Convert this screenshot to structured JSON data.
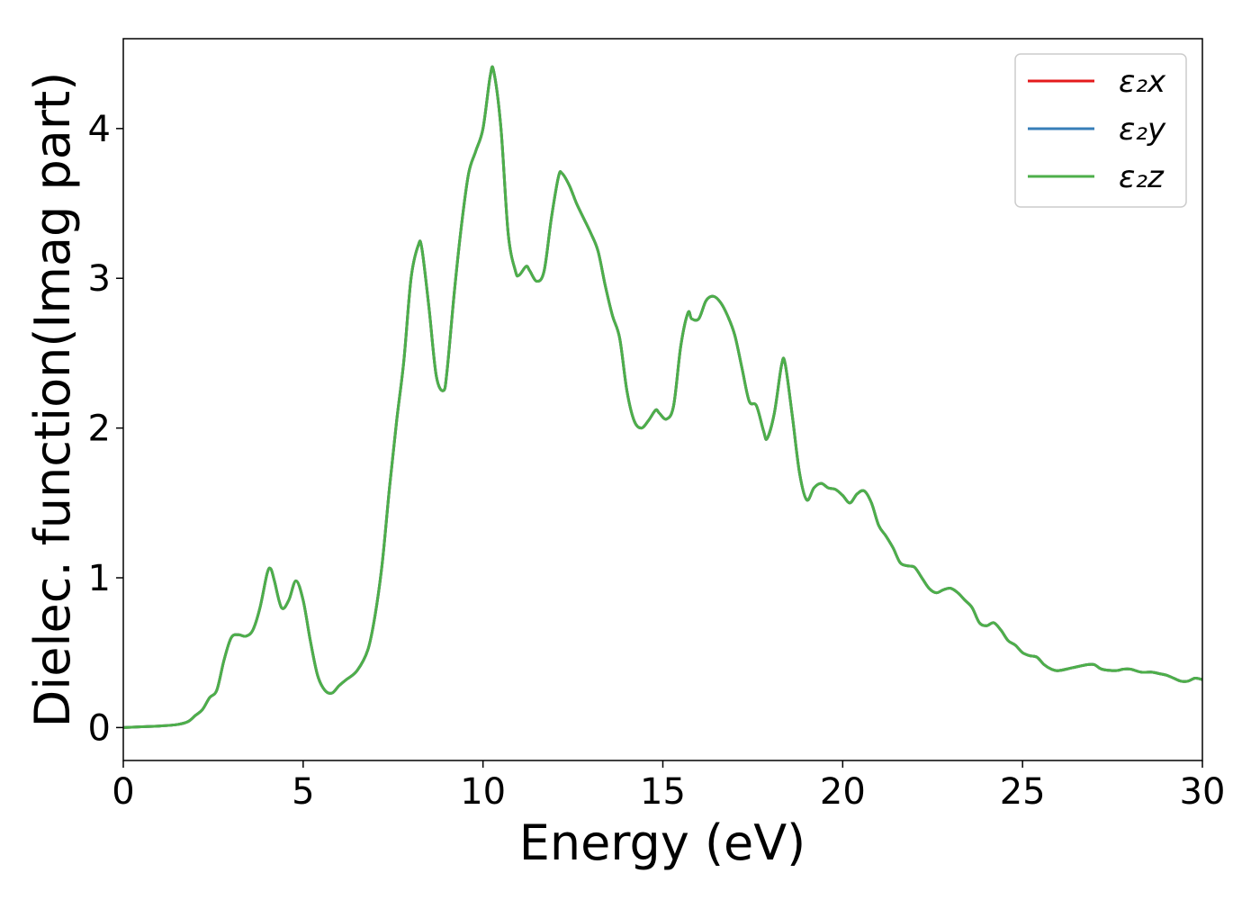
{
  "chart_data": {
    "type": "line",
    "title": "",
    "xlabel": "Energy (eV)",
    "ylabel": "Dielec. function(Imag part)",
    "xlim": [
      0,
      30
    ],
    "ylim": [
      -0.22,
      4.6
    ],
    "xticks": [
      0,
      5,
      10,
      15,
      20,
      25,
      30
    ],
    "xtick_labels": [
      "0",
      "5",
      "10",
      "15",
      "20",
      "25",
      "30"
    ],
    "yticks": [
      0,
      1,
      2,
      3,
      4
    ],
    "ytick_labels": [
      "0",
      "1",
      "2",
      "3",
      "4"
    ],
    "grid": false,
    "legend_position": "top-right",
    "x": [
      0,
      0.5,
      1.0,
      1.5,
      1.8,
      2.0,
      2.2,
      2.4,
      2.6,
      2.8,
      3.0,
      3.2,
      3.4,
      3.6,
      3.8,
      4.0,
      4.1,
      4.2,
      4.4,
      4.6,
      4.8,
      5.0,
      5.2,
      5.4,
      5.6,
      5.8,
      6.0,
      6.2,
      6.5,
      6.8,
      7.0,
      7.2,
      7.4,
      7.6,
      7.8,
      8.0,
      8.2,
      8.3,
      8.5,
      8.7,
      8.9,
      9.0,
      9.2,
      9.4,
      9.6,
      9.8,
      10.0,
      10.2,
      10.3,
      10.5,
      10.7,
      10.9,
      11.0,
      11.2,
      11.3,
      11.5,
      11.7,
      11.9,
      12.1,
      12.2,
      12.4,
      12.6,
      12.8,
      13.0,
      13.2,
      13.4,
      13.6,
      13.8,
      14.0,
      14.2,
      14.4,
      14.6,
      14.8,
      14.9,
      15.1,
      15.3,
      15.5,
      15.7,
      15.8,
      16.0,
      16.2,
      16.4,
      16.6,
      16.8,
      17.0,
      17.2,
      17.4,
      17.6,
      17.8,
      17.9,
      18.1,
      18.3,
      18.4,
      18.6,
      18.8,
      19.0,
      19.2,
      19.4,
      19.6,
      19.8,
      20.0,
      20.2,
      20.4,
      20.6,
      20.8,
      21.0,
      21.2,
      21.4,
      21.6,
      21.8,
      22.0,
      22.2,
      22.4,
      22.6,
      22.8,
      23.0,
      23.2,
      23.4,
      23.6,
      23.8,
      24.0,
      24.2,
      24.4,
      24.6,
      24.8,
      25.0,
      25.2,
      25.4,
      25.6,
      25.8,
      26.0,
      26.4,
      26.8,
      27.0,
      27.2,
      27.6,
      27.8,
      28.0,
      28.3,
      28.6,
      28.8,
      29.0,
      29.2,
      29.4,
      29.6,
      29.8,
      30.0
    ],
    "series": [
      {
        "name": "ε₂x",
        "color": "#e41a1c",
        "values": [
          0.0,
          0.005,
          0.01,
          0.02,
          0.04,
          0.08,
          0.12,
          0.2,
          0.25,
          0.45,
          0.6,
          0.62,
          0.61,
          0.65,
          0.8,
          1.03,
          1.06,
          0.98,
          0.8,
          0.85,
          0.98,
          0.85,
          0.58,
          0.35,
          0.25,
          0.23,
          0.28,
          0.32,
          0.38,
          0.52,
          0.75,
          1.1,
          1.6,
          2.05,
          2.45,
          3.0,
          3.22,
          3.2,
          2.8,
          2.35,
          2.25,
          2.38,
          2.9,
          3.35,
          3.7,
          3.85,
          4.0,
          4.35,
          4.38,
          4.0,
          3.3,
          3.05,
          3.02,
          3.08,
          3.05,
          2.98,
          3.05,
          3.4,
          3.68,
          3.7,
          3.62,
          3.5,
          3.4,
          3.3,
          3.18,
          2.95,
          2.75,
          2.6,
          2.25,
          2.05,
          2.0,
          2.05,
          2.12,
          2.1,
          2.06,
          2.15,
          2.55,
          2.77,
          2.73,
          2.73,
          2.85,
          2.88,
          2.84,
          2.75,
          2.62,
          2.4,
          2.18,
          2.15,
          1.98,
          1.93,
          2.1,
          2.42,
          2.43,
          2.08,
          1.7,
          1.52,
          1.6,
          1.63,
          1.6,
          1.59,
          1.55,
          1.5,
          1.56,
          1.58,
          1.5,
          1.35,
          1.28,
          1.2,
          1.1,
          1.08,
          1.07,
          1.0,
          0.93,
          0.9,
          0.92,
          0.93,
          0.9,
          0.85,
          0.8,
          0.7,
          0.68,
          0.7,
          0.65,
          0.58,
          0.55,
          0.5,
          0.48,
          0.47,
          0.42,
          0.39,
          0.38,
          0.4,
          0.42,
          0.42,
          0.39,
          0.38,
          0.39,
          0.39,
          0.37,
          0.37,
          0.36,
          0.35,
          0.33,
          0.31,
          0.31,
          0.33,
          0.32
        ]
      },
      {
        "name": "ε₂y",
        "color": "#377eb8",
        "values": [
          0.0,
          0.005,
          0.01,
          0.02,
          0.04,
          0.08,
          0.12,
          0.2,
          0.25,
          0.45,
          0.6,
          0.62,
          0.61,
          0.65,
          0.8,
          1.03,
          1.06,
          0.98,
          0.8,
          0.85,
          0.98,
          0.85,
          0.58,
          0.35,
          0.25,
          0.23,
          0.28,
          0.32,
          0.38,
          0.52,
          0.75,
          1.1,
          1.6,
          2.05,
          2.45,
          3.0,
          3.22,
          3.2,
          2.8,
          2.35,
          2.25,
          2.38,
          2.9,
          3.35,
          3.7,
          3.85,
          4.0,
          4.35,
          4.38,
          4.0,
          3.3,
          3.05,
          3.02,
          3.08,
          3.05,
          2.98,
          3.05,
          3.4,
          3.68,
          3.7,
          3.62,
          3.5,
          3.4,
          3.3,
          3.18,
          2.95,
          2.75,
          2.6,
          2.25,
          2.05,
          2.0,
          2.05,
          2.12,
          2.1,
          2.06,
          2.15,
          2.55,
          2.77,
          2.73,
          2.73,
          2.85,
          2.88,
          2.84,
          2.75,
          2.62,
          2.4,
          2.18,
          2.15,
          1.98,
          1.93,
          2.1,
          2.42,
          2.43,
          2.08,
          1.7,
          1.52,
          1.6,
          1.63,
          1.6,
          1.59,
          1.55,
          1.5,
          1.56,
          1.58,
          1.5,
          1.35,
          1.28,
          1.2,
          1.1,
          1.08,
          1.07,
          1.0,
          0.93,
          0.9,
          0.92,
          0.93,
          0.9,
          0.85,
          0.8,
          0.7,
          0.68,
          0.7,
          0.65,
          0.58,
          0.55,
          0.5,
          0.48,
          0.47,
          0.42,
          0.39,
          0.38,
          0.4,
          0.42,
          0.42,
          0.39,
          0.38,
          0.39,
          0.39,
          0.37,
          0.37,
          0.36,
          0.35,
          0.33,
          0.31,
          0.31,
          0.33,
          0.32
        ]
      },
      {
        "name": "ε₂z",
        "color": "#4daf4a",
        "values": [
          0.0,
          0.005,
          0.01,
          0.02,
          0.04,
          0.08,
          0.12,
          0.2,
          0.25,
          0.45,
          0.6,
          0.62,
          0.61,
          0.65,
          0.8,
          1.03,
          1.06,
          0.98,
          0.8,
          0.85,
          0.98,
          0.85,
          0.58,
          0.35,
          0.25,
          0.23,
          0.28,
          0.32,
          0.38,
          0.52,
          0.75,
          1.1,
          1.6,
          2.05,
          2.45,
          3.0,
          3.22,
          3.2,
          2.8,
          2.35,
          2.25,
          2.38,
          2.9,
          3.35,
          3.7,
          3.85,
          4.0,
          4.35,
          4.38,
          4.0,
          3.3,
          3.05,
          3.02,
          3.08,
          3.05,
          2.98,
          3.05,
          3.4,
          3.68,
          3.7,
          3.62,
          3.5,
          3.4,
          3.3,
          3.18,
          2.95,
          2.75,
          2.6,
          2.25,
          2.05,
          2.0,
          2.05,
          2.12,
          2.1,
          2.06,
          2.15,
          2.55,
          2.77,
          2.73,
          2.73,
          2.85,
          2.88,
          2.84,
          2.75,
          2.62,
          2.4,
          2.18,
          2.15,
          1.98,
          1.93,
          2.1,
          2.42,
          2.43,
          2.08,
          1.7,
          1.52,
          1.6,
          1.63,
          1.6,
          1.59,
          1.55,
          1.5,
          1.56,
          1.58,
          1.5,
          1.35,
          1.28,
          1.2,
          1.1,
          1.08,
          1.07,
          1.0,
          0.93,
          0.9,
          0.92,
          0.93,
          0.9,
          0.85,
          0.8,
          0.7,
          0.68,
          0.7,
          0.65,
          0.58,
          0.55,
          0.5,
          0.48,
          0.47,
          0.42,
          0.39,
          0.38,
          0.4,
          0.42,
          0.42,
          0.39,
          0.38,
          0.39,
          0.39,
          0.37,
          0.37,
          0.36,
          0.35,
          0.33,
          0.31,
          0.31,
          0.33,
          0.32
        ]
      }
    ]
  }
}
